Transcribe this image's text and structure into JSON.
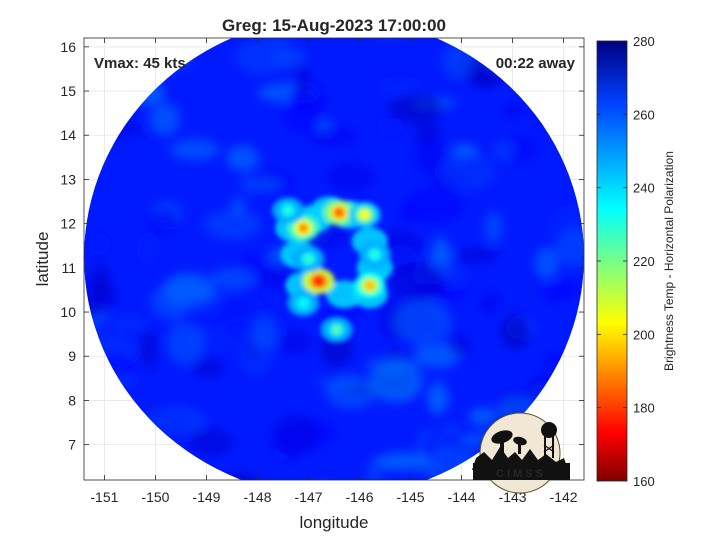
{
  "chart_data": {
    "type": "heatmap",
    "title": "Greg: 15-Aug-2023 17:00:00",
    "xlabel": "longitude",
    "ylabel": "latitude",
    "xlim": [
      -151.4,
      -141.6
    ],
    "ylim": [
      6.2,
      16.2
    ],
    "x_ticks": [
      -151,
      -150,
      -149,
      -148,
      -147,
      -146,
      -145,
      -144,
      -143,
      -142
    ],
    "y_ticks": [
      7,
      8,
      9,
      10,
      11,
      12,
      13,
      14,
      15,
      16
    ],
    "grid": true,
    "annotation_left": "Vmax: 45 kts",
    "annotation_right": "00:22 away",
    "colorbar": {
      "label": "Brightness Temp - Horizontal Polarization",
      "min": 160,
      "max": 280,
      "ticks": [
        160,
        180,
        200,
        220,
        240,
        260,
        280
      ],
      "colormap": "jet"
    },
    "swath": {
      "center_lon": -146.5,
      "center_lat": 11.2,
      "background_value": 262
    },
    "features": [
      {
        "lon": -146.8,
        "lat": 10.7,
        "value": 176
      },
      {
        "lon": -147.1,
        "lat": 11.9,
        "value": 192
      },
      {
        "lon": -146.4,
        "lat": 12.25,
        "value": 186
      },
      {
        "lon": -145.8,
        "lat": 10.6,
        "value": 198
      },
      {
        "lon": -145.9,
        "lat": 12.2,
        "value": 206
      },
      {
        "lon": -146.45,
        "lat": 9.6,
        "value": 225
      },
      {
        "lon": -147.4,
        "lat": 12.3,
        "value": 232
      },
      {
        "lon": -147.0,
        "lat": 11.2,
        "value": 230
      },
      {
        "lon": -145.7,
        "lat": 11.3,
        "value": 232
      },
      {
        "lon": -147.1,
        "lat": 10.2,
        "value": 236
      }
    ]
  },
  "logo": {
    "text": "CIMSS"
  }
}
